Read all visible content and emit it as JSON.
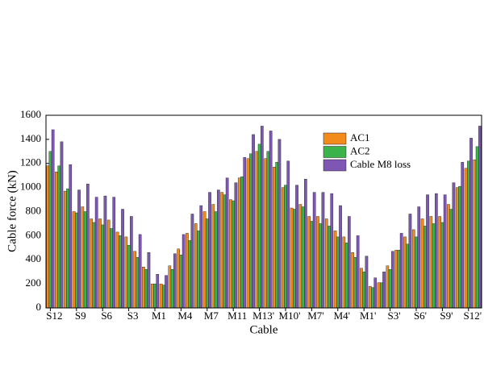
{
  "chart_data": {
    "type": "bar",
    "x_label": "Cable",
    "y_label": "Cable force (kN)",
    "categories": [
      "S12",
      null,
      null,
      "S9",
      null,
      null,
      "S6",
      null,
      null,
      "S3",
      null,
      null,
      "M1",
      null,
      null,
      "M4",
      null,
      null,
      "M7",
      null,
      null,
      "M11",
      null,
      null,
      "M13'",
      null,
      null,
      "M10'",
      null,
      null,
      "M7'",
      null,
      null,
      "M4'",
      null,
      null,
      "M1'",
      null,
      null,
      "S3'",
      null,
      null,
      "S6'",
      null,
      null,
      "S9'",
      null,
      null,
      "S12'",
      null
    ],
    "series": [
      {
        "name": "AC1",
        "color": "#f28a1c",
        "values": [
          1180,
          1130,
          970,
          800,
          840,
          740,
          740,
          730,
          630,
          590,
          470,
          340,
          200,
          200,
          350,
          490,
          620,
          700,
          800,
          860,
          960,
          900,
          1080,
          1240,
          1300,
          1240,
          1170,
          1000,
          830,
          860,
          760,
          760,
          740,
          640,
          590,
          460,
          330,
          180,
          210,
          350,
          480,
          590,
          650,
          740,
          760,
          760,
          860,
          1000,
          1160,
          1230
        ]
      },
      {
        "name": "AC2",
        "color": "#3cb34a",
        "values": [
          1300,
          1180,
          990,
          790,
          800,
          710,
          690,
          660,
          600,
          520,
          420,
          320,
          200,
          190,
          320,
          440,
          560,
          640,
          740,
          800,
          940,
          890,
          1090,
          1280,
          1360,
          1300,
          1210,
          1020,
          820,
          840,
          720,
          700,
          680,
          590,
          540,
          420,
          300,
          170,
          210,
          320,
          480,
          530,
          590,
          680,
          700,
          710,
          820,
          1010,
          1220,
          1340
        ]
      },
      {
        "name": "Cable M8 loss",
        "color": "#7e57b4",
        "values": [
          1480,
          1380,
          1190,
          980,
          1030,
          920,
          930,
          920,
          820,
          760,
          610,
          460,
          280,
          270,
          450,
          610,
          780,
          850,
          960,
          980,
          1080,
          1040,
          1250,
          1440,
          1510,
          1470,
          1400,
          1220,
          1020,
          1070,
          960,
          960,
          950,
          850,
          760,
          600,
          430,
          250,
          300,
          470,
          620,
          780,
          840,
          940,
          950,
          940,
          1040,
          1210,
          1410,
          1510
        ]
      }
    ],
    "ylim": [
      0,
      1600
    ],
    "yticks": [
      0,
      200,
      400,
      600,
      800,
      1000,
      1200,
      1400,
      1600
    ],
    "legend": "upper-right"
  }
}
